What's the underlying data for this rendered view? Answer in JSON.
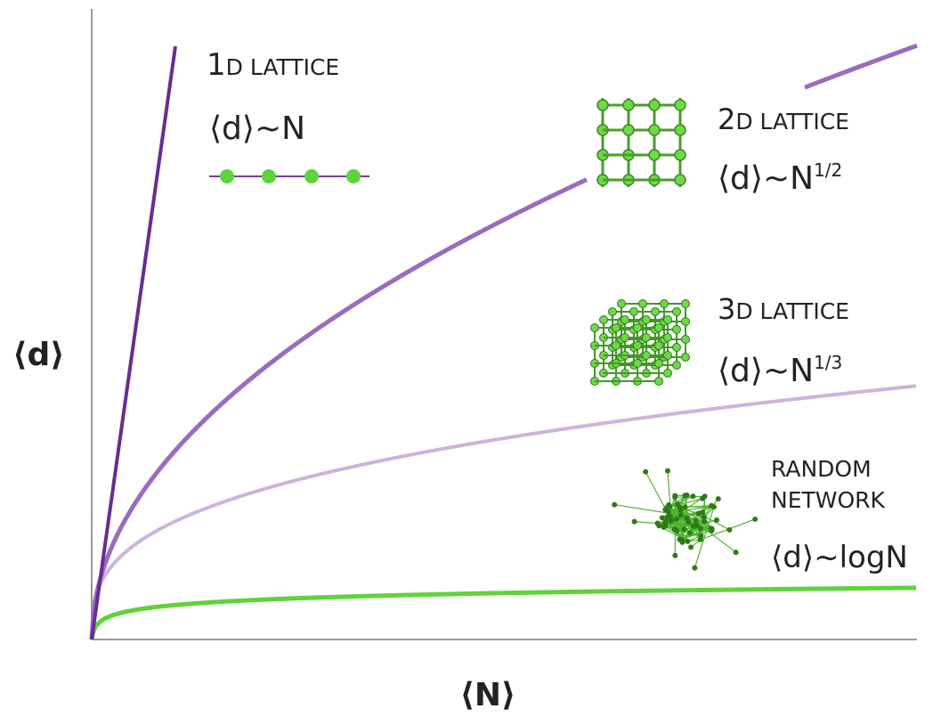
{
  "axes": {
    "y_label": "⟨d⟩",
    "x_label": "⟨N⟩"
  },
  "labels": [
    {
      "title_number": "1",
      "title_rest": "D LATTICE",
      "formula": "⟨d⟩~N"
    },
    {
      "title_number": "2",
      "title_rest": "D LATTICE",
      "formula": "⟨d⟩~N",
      "exponent": "1/2"
    },
    {
      "title_number": "3",
      "title_rest": "D LATTICE",
      "formula": "⟨d⟩~N",
      "exponent": "1/3"
    },
    {
      "title_lines": [
        "RANDOM",
        "NETWORK"
      ],
      "formula": "⟨d⟩~logN"
    }
  ]
}
